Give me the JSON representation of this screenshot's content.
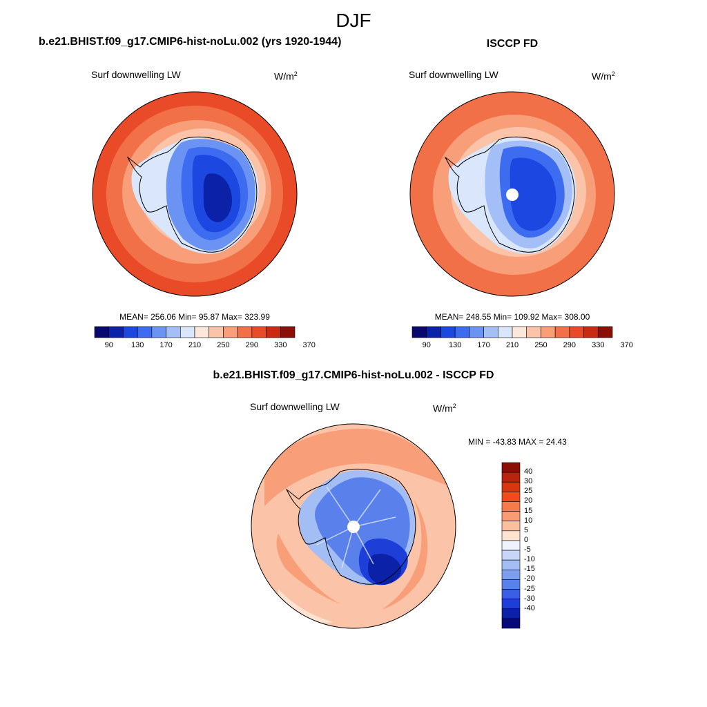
{
  "main_title": "DJF",
  "panels": [
    {
      "title": "b.e21.BHIST.f09_g17.CMIP6-hist-noLu.002 (yrs 1920-1944)",
      "var_label": "Surf downwelling LW",
      "units": "W/m",
      "units_sup": "2",
      "stats": "MEAN= 256.06  Min=  95.87  Max= 323.99"
    },
    {
      "title": "ISCCP FD",
      "var_label": "Surf downwelling LW",
      "units": "W/m",
      "units_sup": "2",
      "stats": "MEAN= 248.55  Min= 109.92  Max= 308.00"
    },
    {
      "title": "b.e21.BHIST.f09_g17.CMIP6-hist-noLu.002 - ISCCP FD",
      "var_label": "Surf downwelling LW",
      "units": "W/m",
      "units_sup": "2",
      "stats": "MIN = -43.83 MAX =  24.43"
    }
  ],
  "abs_colorbar": {
    "colors": [
      "#08086e",
      "#0b22a8",
      "#1c47e0",
      "#3d6cf0",
      "#6b93f3",
      "#a4bff7",
      "#d9e6fb",
      "#fde6da",
      "#fbc3a8",
      "#f89e78",
      "#f27048",
      "#e94a28",
      "#c92a12",
      "#8b0f05"
    ],
    "tick_labels": [
      "90",
      "130",
      "170",
      "210",
      "250",
      "290",
      "330",
      "370"
    ]
  },
  "diff_colorbar": {
    "colors": [
      "#8b0f05",
      "#b8240d",
      "#d9360f",
      "#f04d1b",
      "#f67a4c",
      "#f99b73",
      "#fbbf9d",
      "#fde3d0",
      "#eef3fd",
      "#c6d6f8",
      "#a3bdf5",
      "#7c9ef1",
      "#5a80ec",
      "#3a5fe6",
      "#1d3fd8",
      "#0b22a8",
      "#07087a"
    ],
    "tick_labels": [
      "40",
      "30",
      "25",
      "20",
      "15",
      "10",
      "5",
      "0",
      "-5",
      "-10",
      "-15",
      "-20",
      "-25",
      "-30",
      "-40"
    ]
  },
  "colors": {
    "ocean_warm": "#f27048",
    "ocean_mid": "#f89e78",
    "ocean_light": "#fbc3a8",
    "ice_dark": "#1c47e0",
    "ice_deep": "#0b22a8"
  }
}
